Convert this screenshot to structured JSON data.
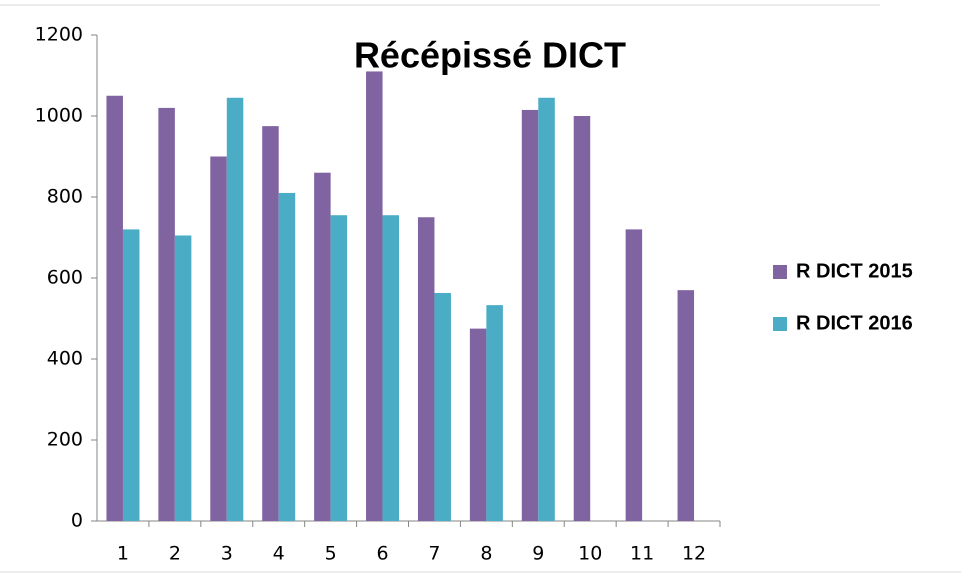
{
  "chart_data": {
    "type": "bar",
    "title": "Récépissé DICT",
    "categories": [
      "1",
      "2",
      "3",
      "4",
      "5",
      "6",
      "7",
      "8",
      "9",
      "10",
      "11",
      "12"
    ],
    "series": [
      {
        "name": "R DICT 2015",
        "color": "#8064a2",
        "values": [
          1050,
          1020,
          900,
          975,
          860,
          1110,
          750,
          475,
          1015,
          1000,
          720,
          570
        ]
      },
      {
        "name": "R DICT 2016",
        "color": "#4bacc6",
        "values": [
          720,
          705,
          1045,
          810,
          755,
          755,
          563,
          533,
          1045,
          null,
          null,
          null
        ]
      }
    ],
    "ylim": [
      0,
      1200
    ],
    "yticks": [
      0,
      200,
      400,
      600,
      800,
      1000,
      1200
    ],
    "grid": false,
    "legend": "right"
  }
}
